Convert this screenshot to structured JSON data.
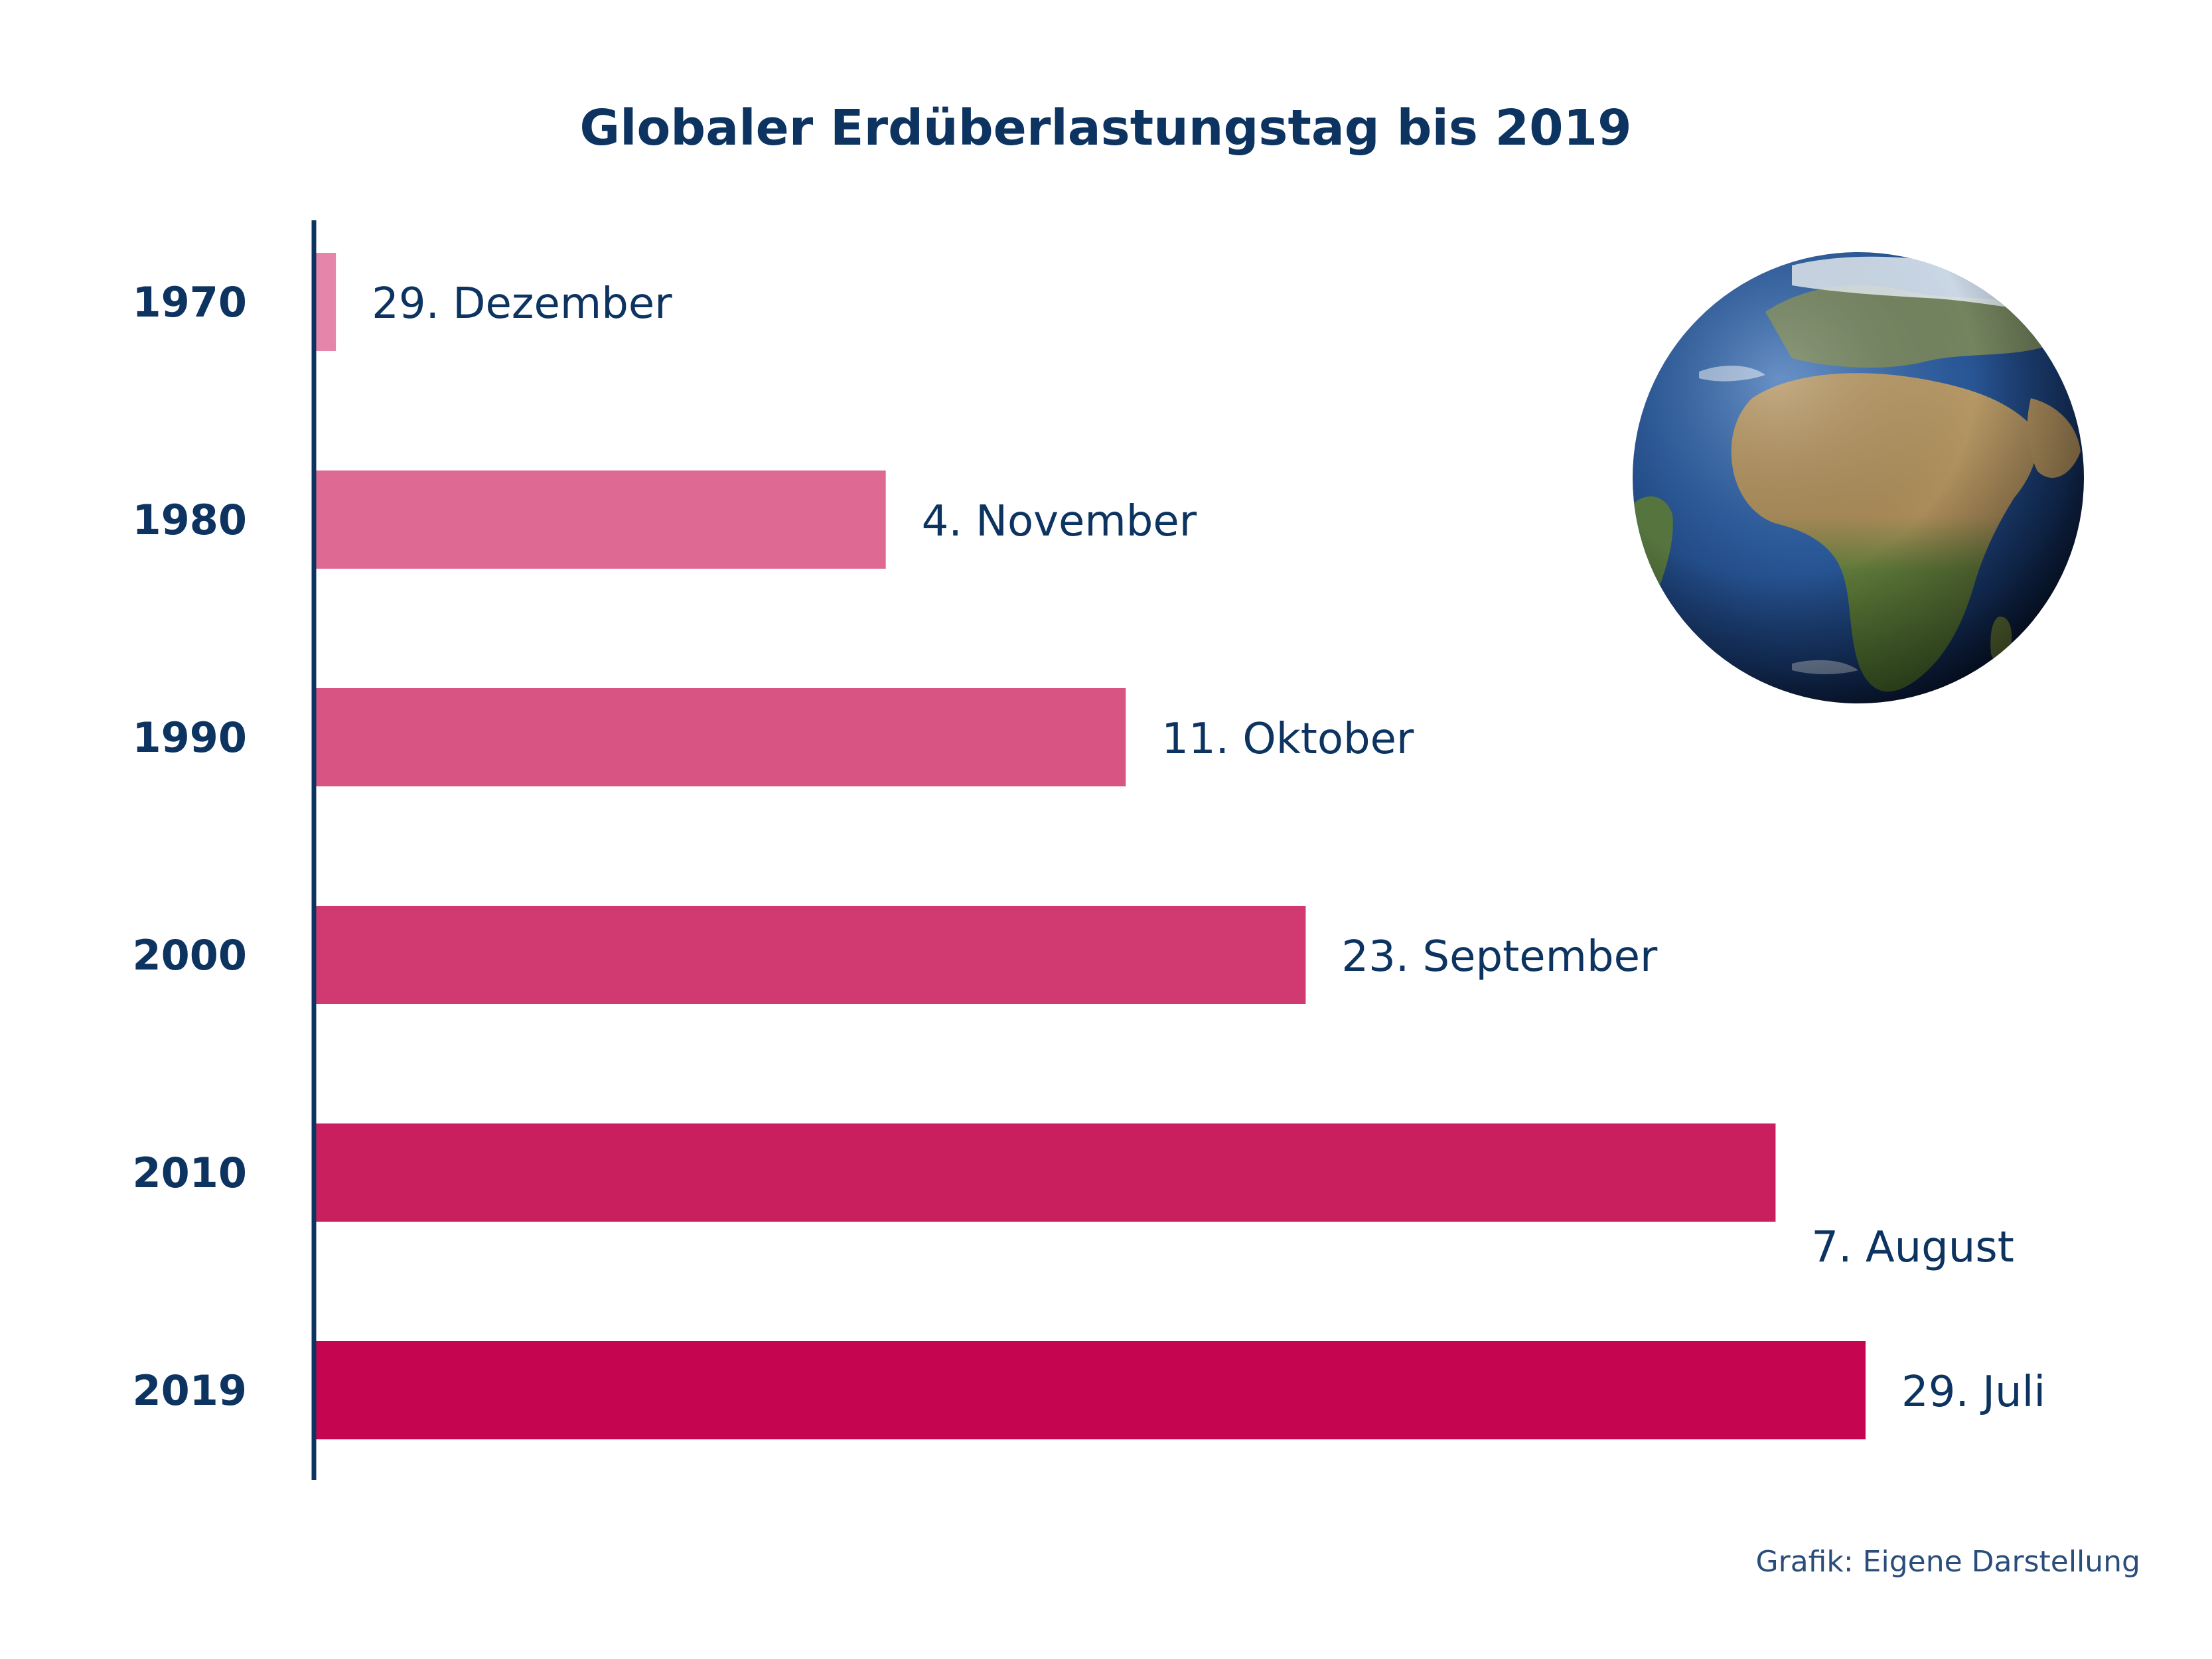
{
  "chart_data": {
    "type": "bar",
    "orientation": "horizontal",
    "title": "Globaler Erdüberlastungstag bis 2019",
    "categories": [
      "1970",
      "1980",
      "1990",
      "2000",
      "2010",
      "2019"
    ],
    "series": [
      {
        "days_before_year_end": [
          2,
          57,
          81,
          99,
          146,
          155
        ],
        "data_labels": [
          "29. Dezember",
          "4. November",
          "11. Oktober",
          "23. September",
          "7. August",
          "29. Juli"
        ],
        "colors": [
          "#e585a9",
          "#de6a93",
          "#d85482",
          "#d03a70",
          "#ca1f5f",
          "#c50550"
        ]
      }
    ],
    "grid": false,
    "legend": "none",
    "source": "Grafik: Eigene Darstellung",
    "axis_color": "#0d3461",
    "text_color": "#0d3461",
    "decoration": "earth-globe-icon"
  }
}
